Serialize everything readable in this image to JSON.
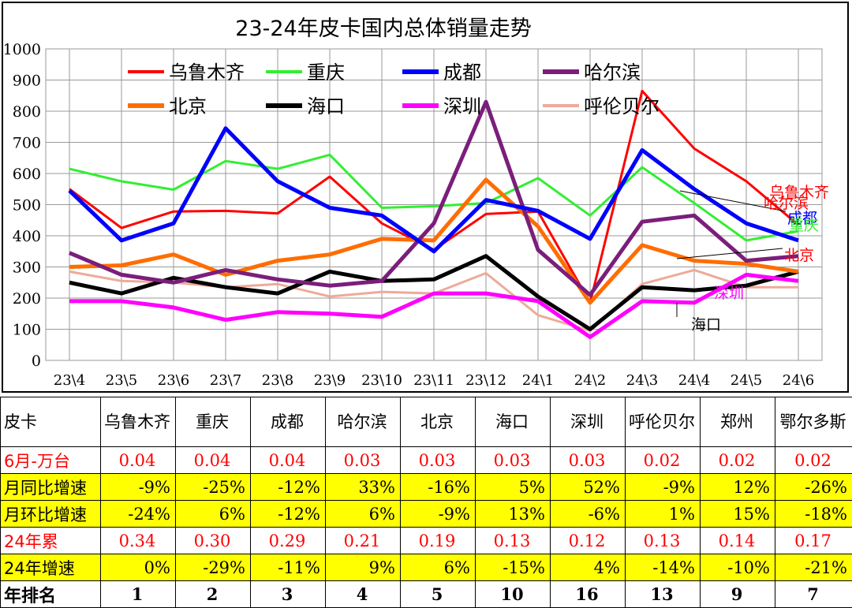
{
  "chart_data": {
    "type": "line",
    "title": "23-24年皮卡国内总体销量走势",
    "categories": [
      "23\\4",
      "23\\5",
      "23\\6",
      "23\\7",
      "23\\8",
      "23\\9",
      "23\\10",
      "23\\11",
      "23\\12",
      "24\\1",
      "24\\2",
      "24\\3",
      "24\\4",
      "24\\5",
      "24\\6"
    ],
    "ylim": [
      0,
      1000
    ],
    "yticks": [
      0,
      100,
      200,
      300,
      400,
      500,
      600,
      700,
      800,
      900,
      1000
    ],
    "grid": true,
    "legend": "top",
    "series": [
      {
        "name": "乌鲁木齐",
        "color": "#ff0000",
        "width": 3,
        "values": [
          550,
          425,
          478,
          480,
          472,
          590,
          440,
          355,
          470,
          478,
          185,
          865,
          680,
          575,
          435
        ]
      },
      {
        "name": "重庆",
        "color": "#33ee33",
        "width": 3,
        "values": [
          615,
          575,
          548,
          640,
          615,
          660,
          490,
          495,
          505,
          585,
          465,
          620,
          505,
          385,
          415
        ]
      },
      {
        "name": "成都",
        "color": "#0000ff",
        "width": 5,
        "values": [
          545,
          385,
          440,
          745,
          575,
          490,
          465,
          350,
          515,
          480,
          390,
          675,
          550,
          440,
          385
        ]
      },
      {
        "name": "哈尔滨",
        "color": "#7b1e7b",
        "width": 5,
        "values": [
          345,
          275,
          250,
          290,
          260,
          240,
          255,
          440,
          830,
          355,
          210,
          445,
          465,
          320,
          335
        ]
      },
      {
        "name": "北京",
        "color": "#ff6d00",
        "width": 5,
        "values": [
          300,
          305,
          340,
          275,
          320,
          340,
          390,
          385,
          580,
          430,
          185,
          370,
          320,
          310,
          285
        ]
      },
      {
        "name": "海口",
        "color": "#000000",
        "width": 5,
        "values": [
          250,
          215,
          265,
          235,
          215,
          285,
          255,
          260,
          335,
          205,
          100,
          235,
          225,
          240,
          285
        ]
      },
      {
        "name": "深圳",
        "color": "#ff00ff",
        "width": 5,
        "values": [
          190,
          190,
          170,
          130,
          155,
          150,
          140,
          215,
          215,
          190,
          75,
          190,
          185,
          275,
          255
        ]
      },
      {
        "name": "呼伦贝尔",
        "color": "#eeaa99",
        "width": 3,
        "values": [
          285,
          255,
          250,
          235,
          245,
          205,
          220,
          215,
          280,
          145,
          95,
          245,
          290,
          235,
          235
        ]
      }
    ],
    "end_labels": [
      {
        "text": "乌鲁木齐",
        "color": "#ff0000"
      },
      {
        "text": "哈尔滨",
        "color": "#ff0000"
      },
      {
        "text": "成都",
        "color": "#0000ff"
      },
      {
        "text": "重庆",
        "color": "#33ee33"
      },
      {
        "text": "北京",
        "color": "#ff0000"
      },
      {
        "text": "深圳",
        "color": "#ff00ff"
      },
      {
        "text": "海口",
        "color": "#000000"
      }
    ]
  },
  "table": {
    "header_label": "皮卡",
    "cities": [
      "乌鲁木齐",
      "重庆",
      "成都",
      "哈尔滨",
      "北京",
      "海口",
      "深圳",
      "呼伦贝尔",
      "郑州",
      "鄂尔多斯"
    ],
    "rows": [
      {
        "label": "6月-万台",
        "style": "red",
        "values": [
          "0.04",
          "0.04",
          "0.04",
          "0.03",
          "0.03",
          "0.03",
          "0.03",
          "0.02",
          "0.02",
          "0.02"
        ]
      },
      {
        "label": "月同比增速",
        "style": "yel",
        "values": [
          "-9%",
          "-25%",
          "-12%",
          "33%",
          "-16%",
          "5%",
          "52%",
          "-9%",
          "12%",
          "-26%"
        ]
      },
      {
        "label": "月环比增速",
        "style": "yel",
        "values": [
          "-24%",
          "6%",
          "-12%",
          "6%",
          "-9%",
          "13%",
          "-6%",
          "1%",
          "15%",
          "-18%"
        ]
      },
      {
        "label": "24年累",
        "style": "red",
        "values": [
          "0.34",
          "0.30",
          "0.29",
          "0.21",
          "0.19",
          "0.13",
          "0.12",
          "0.13",
          "0.14",
          "0.17"
        ]
      },
      {
        "label": "24年增速",
        "style": "yel",
        "values": [
          "0%",
          "-29%",
          "-11%",
          "9%",
          "6%",
          "-15%",
          "4%",
          "-14%",
          "-10%",
          "-21%"
        ]
      },
      {
        "label": "年排名",
        "style": "rank",
        "values": [
          "1",
          "2",
          "3",
          "4",
          "5",
          "10",
          "16",
          "13",
          "9",
          "7"
        ]
      }
    ]
  }
}
